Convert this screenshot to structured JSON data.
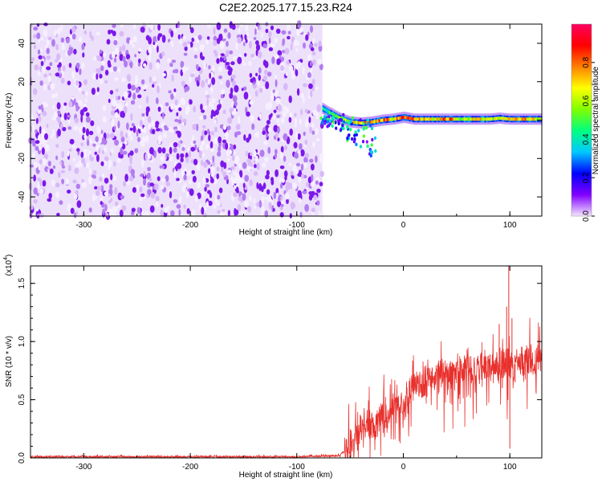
{
  "title": "C2E2.2025.177.15.23.R24",
  "chart_data": [
    {
      "type": "heatmap",
      "xlabel": "Height of straight line (km)",
      "ylabel": "Frequency (Hz)",
      "xlim": [
        -350,
        130
      ],
      "ylim": [
        -50,
        50
      ],
      "x_ticks": [
        "-300",
        "-200",
        "-100",
        "0",
        "100"
      ],
      "y_ticks": [
        "-40",
        "-20",
        "0",
        "20",
        "40"
      ],
      "noise_region_x": [
        -350,
        -76
      ],
      "colorbar": {
        "label": "Normalized spectral amplitude",
        "range": [
          0,
          1
        ],
        "ticks": [
          "0.0",
          "0.2",
          "0.4",
          "0.6",
          "0.8"
        ],
        "colormap": [
          "#f5e6ff",
          "#8000ff",
          "#0000ff",
          "#00c8ff",
          "#00ff80",
          "#80ff00",
          "#ffff00",
          "#ff8000",
          "#ff0000",
          "#ff0060"
        ]
      },
      "signal_band": [
        {
          "x": -76,
          "freq": 6,
          "amp": 0.45
        },
        {
          "x": -70,
          "freq": 4,
          "amp": 0.55
        },
        {
          "x": -60,
          "freq": 1,
          "amp": 0.6
        },
        {
          "x": -50,
          "freq": -1,
          "amp": 0.7
        },
        {
          "x": -40,
          "freq": -1.5,
          "amp": 0.9
        },
        {
          "x": -30,
          "freq": -1,
          "amp": 0.85
        },
        {
          "x": -20,
          "freq": 0,
          "amp": 0.95
        },
        {
          "x": -10,
          "freq": 0.5,
          "amp": 0.7
        },
        {
          "x": 0,
          "freq": 1.5,
          "amp": 0.95
        },
        {
          "x": 10,
          "freq": 0.5,
          "amp": 0.8
        },
        {
          "x": 20,
          "freq": 0.5,
          "amp": 0.75
        },
        {
          "x": 30,
          "freq": 0.5,
          "amp": 0.7
        },
        {
          "x": 40,
          "freq": 0.5,
          "amp": 0.95
        },
        {
          "x": 50,
          "freq": 0.5,
          "amp": 0.7
        },
        {
          "x": 60,
          "freq": 0.5,
          "amp": 0.7
        },
        {
          "x": 70,
          "freq": 0.5,
          "amp": 0.75
        },
        {
          "x": 80,
          "freq": 0.5,
          "amp": 0.7
        },
        {
          "x": 90,
          "freq": 1,
          "amp": 0.8
        },
        {
          "x": 100,
          "freq": 0.5,
          "amp": 0.75
        },
        {
          "x": 110,
          "freq": 0.5,
          "amp": 0.85
        },
        {
          "x": 120,
          "freq": 0.5,
          "amp": 0.75
        },
        {
          "x": 130,
          "freq": 0.5,
          "amp": 0.7
        }
      ]
    },
    {
      "type": "line",
      "xlabel": "Height of straight line (km)",
      "ylabel": "SNR (10 * v/v)",
      "scale_label": "(x10",
      "scale_exponent": "4",
      "xlim": [
        -350,
        130
      ],
      "ylim": [
        0,
        1.65
      ],
      "x_ticks": [
        "-300",
        "-200",
        "-100",
        "0",
        "100"
      ],
      "y_ticks": [
        "0.0",
        "0.5",
        "1.0",
        "1.5"
      ],
      "series": [
        {
          "color": "#e8302c",
          "points": [
            [
              -350,
              0.01
            ],
            [
              -300,
              0.01
            ],
            [
              -200,
              0.01
            ],
            [
              -100,
              0.01
            ],
            [
              -60,
              0.02
            ],
            [
              -50,
              0.1
            ],
            [
              -45,
              0.18
            ],
            [
              -40,
              0.25
            ],
            [
              -35,
              0.3
            ],
            [
              -30,
              0.28
            ],
            [
              -25,
              0.3
            ],
            [
              -20,
              0.4
            ],
            [
              -15,
              0.38
            ],
            [
              -10,
              0.42
            ],
            [
              -5,
              0.45
            ],
            [
              0,
              0.48
            ],
            [
              5,
              0.55
            ],
            [
              10,
              0.6
            ],
            [
              15,
              0.62
            ],
            [
              20,
              0.65
            ],
            [
              30,
              0.7
            ],
            [
              40,
              0.73
            ],
            [
              50,
              0.75
            ],
            [
              60,
              0.76
            ],
            [
              70,
              0.77
            ],
            [
              80,
              0.78
            ],
            [
              90,
              0.78
            ],
            [
              95,
              0.8
            ],
            [
              100,
              0.8
            ],
            [
              110,
              0.81
            ],
            [
              120,
              0.82
            ],
            [
              130,
              0.82
            ]
          ],
          "spikes": [
            [
              90,
              1.15
            ],
            [
              93,
              0.6
            ],
            [
              97,
              1.3
            ],
            [
              99,
              1.65
            ],
            [
              100,
              0.08
            ],
            [
              102,
              1.2
            ],
            [
              105,
              0.65
            ]
          ]
        }
      ]
    }
  ]
}
